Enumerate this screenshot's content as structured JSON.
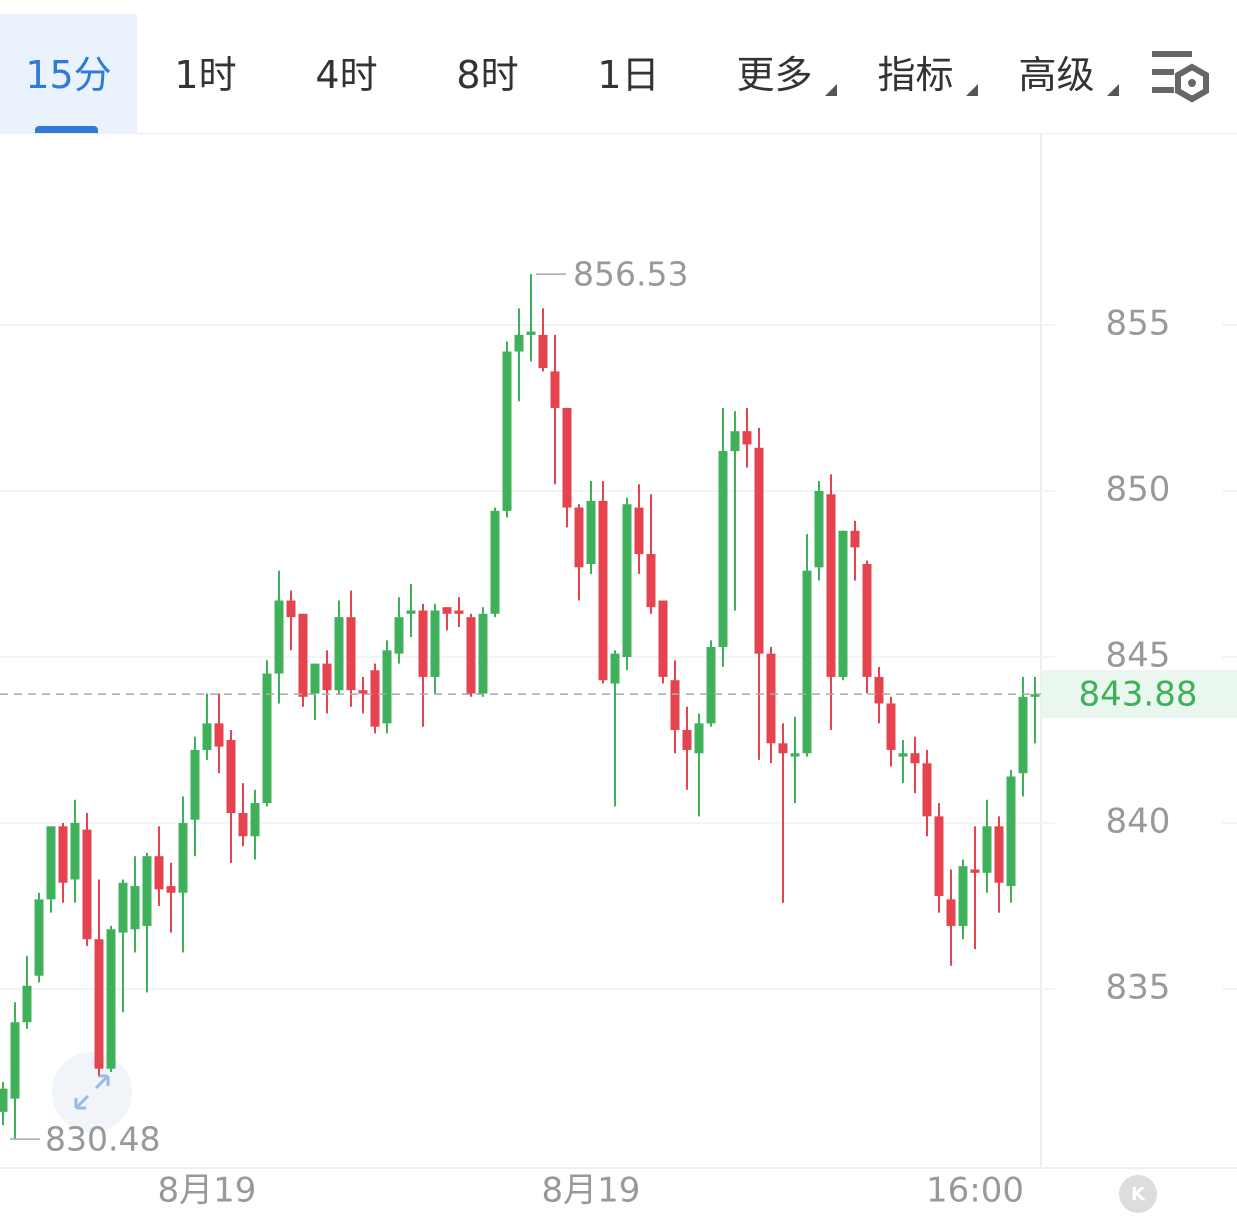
{
  "tabs": [
    "15分",
    "1时",
    "4时",
    "8时",
    "1日",
    "更多",
    "指标",
    "高级"
  ],
  "active_tab": 0,
  "chart_data": {
    "type": "candlestick",
    "categories": [
      null,
      null,
      null,
      null,
      null,
      null,
      null,
      null,
      null,
      null,
      null,
      null,
      null,
      null,
      null,
      null,
      null,
      "8月19",
      null,
      null,
      null,
      null,
      null,
      null,
      null,
      null,
      null,
      null,
      null,
      null,
      null,
      null,
      null,
      null,
      null,
      null,
      null,
      null,
      null,
      null,
      null,
      null,
      null,
      null,
      null,
      null,
      null,
      null,
      null,
      "8月19",
      null,
      null,
      null,
      null,
      null,
      null,
      null,
      null,
      null,
      null,
      null,
      null,
      null,
      null,
      null,
      null,
      null,
      null,
      null,
      null,
      null,
      null,
      null,
      null,
      null,
      null,
      null,
      null,
      null,
      null,
      null,
      "16:00",
      null,
      null,
      null,
      null,
      null
    ],
    "open": [
      831.3,
      831.7,
      834.0,
      835.4,
      837.7,
      839.9,
      838.3,
      839.8,
      836.5,
      832.6,
      836.7,
      836.8,
      836.9,
      839.0,
      838.1,
      837.9,
      840.1,
      842.2,
      843.0,
      842.5,
      840.3,
      839.6,
      840.6,
      844.5,
      846.7,
      846.3,
      843.9,
      844.8,
      844.0,
      846.2,
      844.0,
      844.6,
      843.0,
      845.1,
      846.3,
      846.4,
      844.4,
      846.5,
      846.4,
      846.2,
      843.9,
      846.3,
      849.4,
      854.2,
      854.7,
      854.7,
      853.6,
      852.5,
      849.5,
      847.8,
      849.7,
      844.2,
      845.0,
      849.5,
      848.1,
      846.7,
      844.3,
      842.8,
      842.1,
      843.0,
      845.3,
      851.2,
      851.8,
      851.3,
      845.1,
      842.4,
      842.0,
      842.1,
      847.7,
      849.9,
      844.4,
      848.8,
      847.8,
      844.4,
      843.6,
      842.0,
      842.1,
      841.8,
      840.2,
      837.7,
      836.9,
      838.6,
      838.5,
      839.9,
      838.1,
      841.5,
      843.8
    ],
    "high": [
      832.2,
      834.6,
      836.0,
      837.9,
      839.9,
      840.0,
      840.7,
      840.3,
      838.3,
      836.9,
      838.3,
      839.0,
      839.1,
      839.9,
      838.8,
      840.8,
      842.6,
      843.9,
      843.9,
      842.8,
      841.2,
      841.0,
      844.9,
      847.6,
      847.0,
      846.3,
      844.8,
      845.2,
      846.7,
      847.0,
      844.4,
      844.8,
      845.5,
      846.8,
      847.2,
      846.6,
      846.6,
      846.5,
      846.8,
      846.3,
      846.5,
      849.5,
      854.5,
      855.5,
      856.53,
      855.5,
      854.7,
      852.5,
      849.6,
      850.3,
      850.3,
      845.2,
      849.8,
      850.2,
      849.9,
      846.7,
      844.9,
      843.5,
      843.3,
      845.5,
      852.5,
      852.4,
      852.5,
      851.9,
      845.3,
      843.0,
      843.2,
      848.7,
      850.3,
      850.5,
      848.8,
      849.1,
      847.9,
      844.7,
      843.8,
      842.5,
      842.6,
      842.2,
      840.6,
      838.6,
      838.9,
      839.9,
      840.7,
      840.2,
      841.6,
      844.4,
      844.4
    ],
    "low": [
      830.9,
      830.48,
      833.8,
      835.2,
      837.3,
      837.6,
      837.6,
      836.3,
      832.4,
      832.5,
      834.3,
      836.1,
      834.9,
      837.5,
      836.7,
      836.1,
      839.0,
      841.9,
      841.5,
      838.8,
      839.3,
      838.9,
      840.5,
      843.6,
      845.2,
      843.5,
      843.1,
      843.3,
      843.9,
      843.5,
      843.3,
      842.7,
      842.7,
      844.8,
      845.6,
      842.9,
      843.9,
      845.8,
      845.9,
      843.8,
      843.8,
      846.2,
      849.2,
      852.7,
      853.9,
      853.6,
      850.2,
      848.9,
      846.7,
      847.5,
      844.2,
      840.5,
      844.6,
      847.5,
      846.3,
      844.2,
      842.1,
      841.0,
      840.2,
      842.9,
      844.7,
      846.4,
      850.7,
      841.9,
      841.8,
      837.6,
      840.6,
      842.0,
      847.3,
      842.8,
      844.3,
      847.3,
      843.9,
      843.0,
      841.7,
      841.2,
      840.9,
      839.6,
      837.3,
      835.7,
      836.5,
      836.2,
      837.9,
      837.3,
      837.6,
      840.8,
      842.4
    ],
    "close": [
      832.0,
      834.0,
      835.1,
      837.7,
      839.9,
      838.2,
      840.0,
      836.5,
      832.6,
      836.8,
      838.2,
      838.1,
      839.0,
      838.0,
      837.9,
      840.0,
      842.2,
      843.0,
      842.3,
      840.3,
      839.6,
      840.6,
      844.5,
      846.7,
      846.2,
      843.8,
      844.8,
      844.0,
      846.2,
      844.0,
      843.9,
      842.9,
      845.2,
      846.2,
      846.4,
      844.4,
      846.4,
      846.3,
      846.3,
      843.9,
      846.3,
      849.4,
      854.2,
      854.7,
      854.8,
      853.7,
      852.5,
      849.5,
      847.7,
      849.7,
      844.3,
      845.1,
      849.6,
      848.1,
      846.5,
      844.4,
      842.8,
      842.2,
      843.0,
      845.3,
      851.2,
      851.8,
      851.4,
      845.1,
      842.4,
      842.1,
      842.1,
      847.6,
      850.0,
      844.4,
      848.8,
      848.3,
      844.4,
      843.6,
      842.2,
      842.1,
      841.8,
      840.2,
      837.8,
      836.9,
      838.7,
      838.5,
      839.9,
      838.2,
      841.4,
      843.8,
      843.88
    ],
    "up_color": "#3fb15a",
    "down_color": "#e5444f",
    "ylim": [
      829.61,
      860.78
    ],
    "yticks": [
      835,
      840,
      845,
      850,
      855
    ],
    "grid": true
  }
}
